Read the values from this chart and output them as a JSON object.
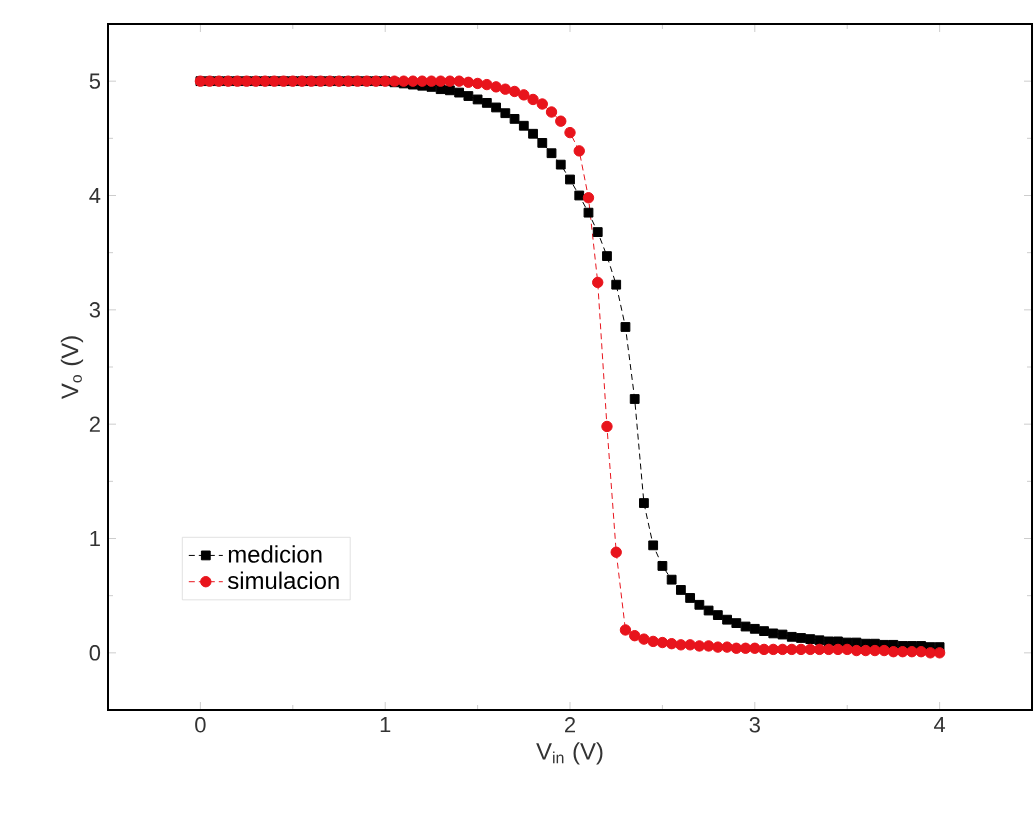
{
  "chart_data": {
    "type": "line",
    "xlabel": "V$_{in}$ (V)",
    "ylabel": "V$_{o}$ (V)",
    "xlim": [
      -0.5,
      4.5
    ],
    "ylim": [
      -0.5,
      5.5
    ],
    "xticks": [
      0,
      1,
      2,
      3,
      4
    ],
    "yticks": [
      0,
      1,
      2,
      3,
      4,
      5
    ],
    "legend": "bottom left",
    "line_style": "dashed",
    "x": [
      0,
      0.05,
      0.1,
      0.15,
      0.2,
      0.25,
      0.3,
      0.35,
      0.4,
      0.45,
      0.5,
      0.55,
      0.6,
      0.65,
      0.7,
      0.75,
      0.8,
      0.85,
      0.9,
      0.95,
      1.0,
      1.05,
      1.1,
      1.15,
      1.2,
      1.25,
      1.3,
      1.35,
      1.4,
      1.45,
      1.5,
      1.55,
      1.6,
      1.65,
      1.7,
      1.75,
      1.8,
      1.85,
      1.9,
      1.95,
      2.0,
      2.05,
      2.1,
      2.15,
      2.2,
      2.25,
      2.3,
      2.35,
      2.4,
      2.45,
      2.5,
      2.55,
      2.6,
      2.65,
      2.7,
      2.75,
      2.8,
      2.85,
      2.9,
      2.95,
      3.0,
      3.05,
      3.1,
      3.15,
      3.2,
      3.25,
      3.3,
      3.35,
      3.4,
      3.45,
      3.5,
      3.55,
      3.6,
      3.65,
      3.7,
      3.75,
      3.8,
      3.85,
      3.9,
      3.95,
      4.0
    ],
    "series": [
      {
        "name": "medicion",
        "color": "#000000",
        "marker": "square",
        "values": [
          5.0,
          5.0,
          5.0,
          5.0,
          5.0,
          5.0,
          5.0,
          5.0,
          5.0,
          5.0,
          5.0,
          5.0,
          5.0,
          5.0,
          5.0,
          5.0,
          5.0,
          5.0,
          5.0,
          5.0,
          5.0,
          4.99,
          4.98,
          4.97,
          4.96,
          4.95,
          4.93,
          4.92,
          4.9,
          4.87,
          4.84,
          4.81,
          4.77,
          4.72,
          4.67,
          4.61,
          4.54,
          4.46,
          4.37,
          4.27,
          4.14,
          4.0,
          3.85,
          3.68,
          3.47,
          3.22,
          2.85,
          2.22,
          1.31,
          0.94,
          0.76,
          0.64,
          0.55,
          0.48,
          0.42,
          0.37,
          0.33,
          0.29,
          0.26,
          0.23,
          0.21,
          0.19,
          0.17,
          0.16,
          0.14,
          0.13,
          0.12,
          0.11,
          0.1,
          0.1,
          0.09,
          0.09,
          0.08,
          0.08,
          0.07,
          0.07,
          0.06,
          0.06,
          0.06,
          0.05,
          0.05
        ]
      },
      {
        "name": "simulacion",
        "color": "#e8141c",
        "marker": "circle",
        "values": [
          5.0,
          5.0,
          5.0,
          5.0,
          5.0,
          5.0,
          5.0,
          5.0,
          5.0,
          5.0,
          5.0,
          5.0,
          5.0,
          5.0,
          5.0,
          5.0,
          5.0,
          5.0,
          5.0,
          5.0,
          5.0,
          5.0,
          5.0,
          5.0,
          5.0,
          5.0,
          5.0,
          5.0,
          5.0,
          4.99,
          4.98,
          4.97,
          4.95,
          4.93,
          4.91,
          4.88,
          4.84,
          4.8,
          4.73,
          4.65,
          4.55,
          4.39,
          3.98,
          3.24,
          1.98,
          0.88,
          0.2,
          0.15,
          0.12,
          0.1,
          0.09,
          0.08,
          0.07,
          0.07,
          0.06,
          0.06,
          0.05,
          0.05,
          0.04,
          0.04,
          0.04,
          0.03,
          0.03,
          0.03,
          0.03,
          0.03,
          0.03,
          0.03,
          0.03,
          0.03,
          0.03,
          0.02,
          0.02,
          0.02,
          0.02,
          0.01,
          0.01,
          0.01,
          0.01,
          0.0,
          0.0
        ]
      }
    ]
  }
}
